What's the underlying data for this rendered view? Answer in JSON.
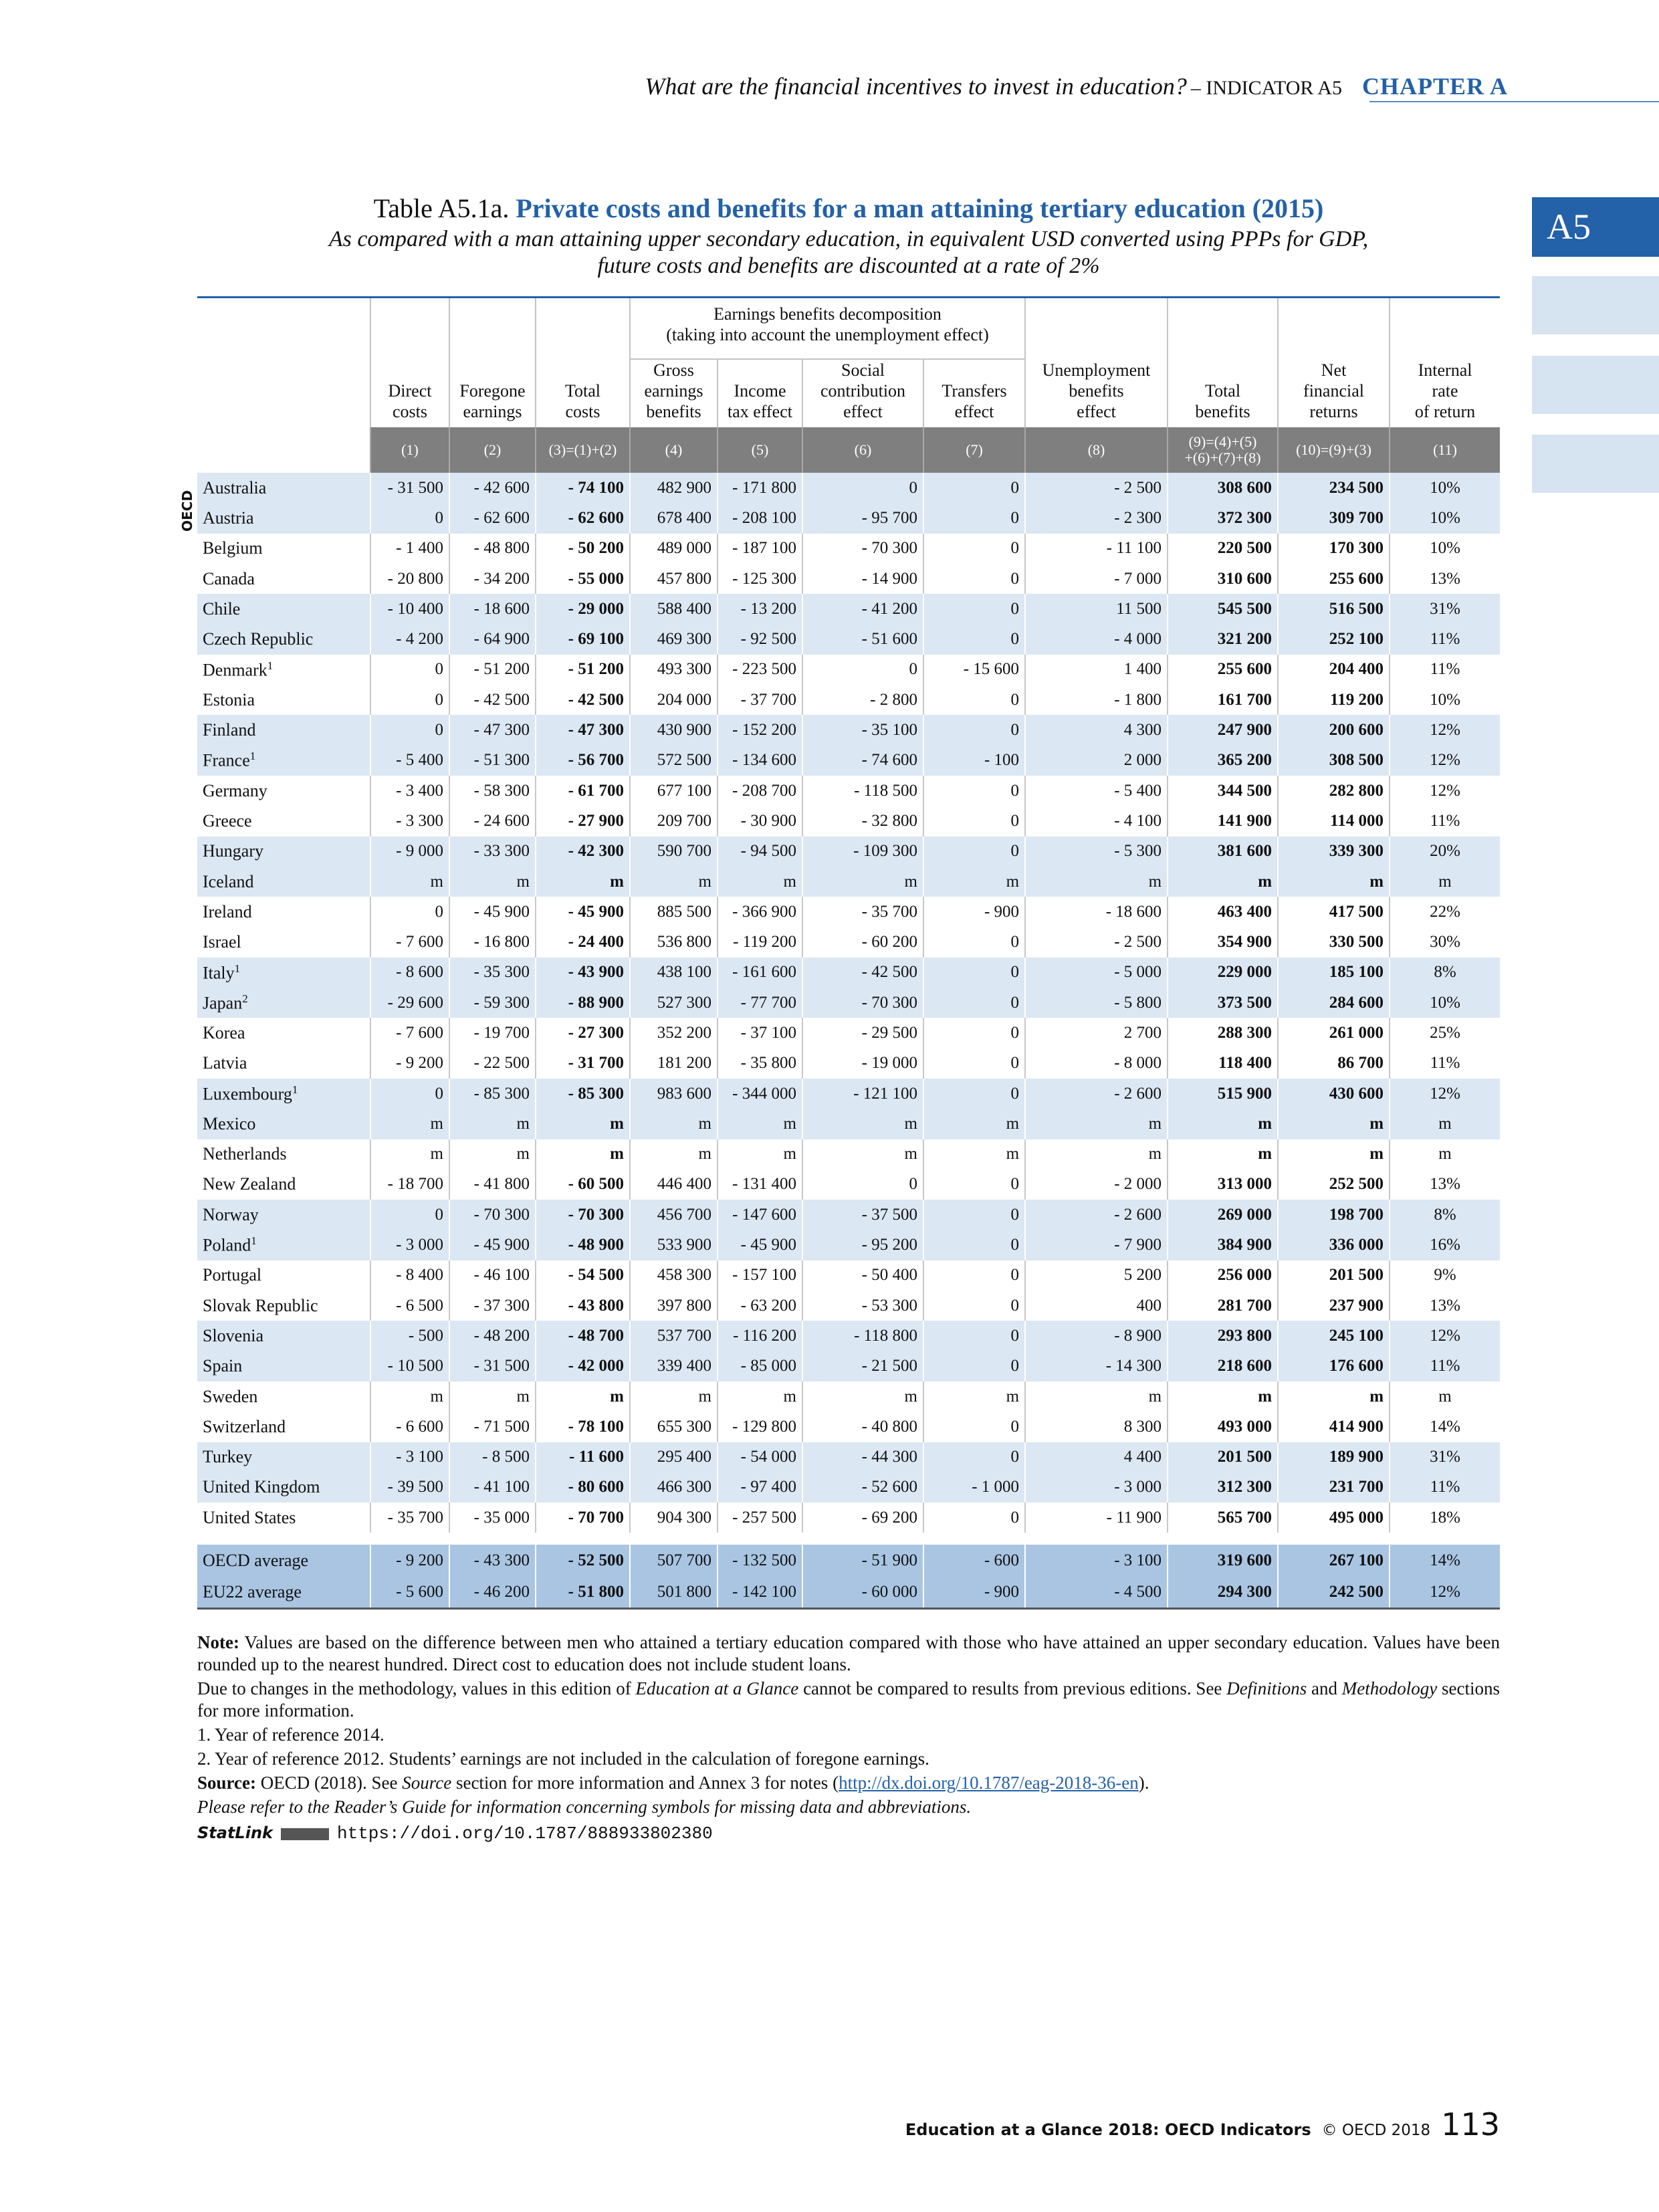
{
  "header": {
    "running_title": "What are the financial incentives to invest in education?",
    "indicator": "– INDICATOR A5",
    "chapter": "CHAPTER A"
  },
  "tab": "A5",
  "table": {
    "label": "Table A5.1a.",
    "title": "Private costs and benefits for a man attaining tertiary education (2015)",
    "subtitle": [
      "As compared with a man attaining upper secondary education, in equivalent USD converted using PPPs for GDP,",
      "future costs and benefits are discounted at a rate of 2%"
    ],
    "group_header": [
      "Earnings benefits decomposition",
      "(taking into account the unemployment effect)"
    ],
    "columns": [
      [
        "Direct",
        "costs"
      ],
      [
        "Foregone",
        "earnings"
      ],
      [
        "Total",
        "costs"
      ],
      [
        "Gross",
        "earnings",
        "benefits"
      ],
      [
        "Income",
        "tax effect"
      ],
      [
        "Social",
        "contribution",
        "effect"
      ],
      [
        "Transfers",
        "effect"
      ],
      [
        "Unemployment",
        "benefits",
        "effect"
      ],
      [
        "Total",
        "benefits"
      ],
      [
        "Net",
        "financial",
        "returns"
      ],
      [
        "Internal",
        "rate",
        "of return"
      ]
    ],
    "column_numbers": [
      [
        "(1)"
      ],
      [
        "(2)"
      ],
      [
        "(3)=(1)+(2)"
      ],
      [
        "(4)"
      ],
      [
        "(5)"
      ],
      [
        "(6)"
      ],
      [
        "(7)"
      ],
      [
        "(8)"
      ],
      [
        "(9)=(4)+(5)",
        "+(6)+(7)+(8)"
      ],
      [
        "(10)=(9)+(3)"
      ],
      [
        "(11)"
      ]
    ],
    "side_label": "OECD",
    "rows": [
      {
        "country": "Australia",
        "values": [
          "- 31 500",
          "- 42 600",
          "- 74 100",
          "482 900",
          "- 171 800",
          "0",
          "0",
          "- 2 500",
          "308 600",
          "234 500",
          "10%"
        ]
      },
      {
        "country": "Austria",
        "values": [
          "0",
          "- 62 600",
          "- 62 600",
          "678 400",
          "- 208 100",
          "- 95 700",
          "0",
          "- 2 300",
          "372 300",
          "309 700",
          "10%"
        ]
      },
      {
        "country": "Belgium",
        "values": [
          "- 1 400",
          "- 48 800",
          "- 50 200",
          "489 000",
          "- 187 100",
          "- 70 300",
          "0",
          "- 11 100",
          "220 500",
          "170 300",
          "10%"
        ]
      },
      {
        "country": "Canada",
        "values": [
          "- 20 800",
          "- 34 200",
          "- 55 000",
          "457 800",
          "- 125 300",
          "- 14 900",
          "0",
          "- 7 000",
          "310 600",
          "255 600",
          "13%"
        ]
      },
      {
        "country": "Chile",
        "values": [
          "- 10 400",
          "- 18 600",
          "- 29 000",
          "588 400",
          "- 13 200",
          "- 41 200",
          "0",
          "11 500",
          "545 500",
          "516 500",
          "31%"
        ]
      },
      {
        "country": "Czech Republic",
        "values": [
          "- 4 200",
          "- 64 900",
          "- 69 100",
          "469 300",
          "- 92 500",
          "- 51 600",
          "0",
          "- 4 000",
          "321 200",
          "252 100",
          "11%"
        ]
      },
      {
        "country": "Denmark",
        "note": "1",
        "values": [
          "0",
          "- 51 200",
          "- 51 200",
          "493 300",
          "- 223 500",
          "0",
          "- 15 600",
          "1 400",
          "255 600",
          "204 400",
          "11%"
        ]
      },
      {
        "country": "Estonia",
        "values": [
          "0",
          "- 42 500",
          "- 42 500",
          "204 000",
          "- 37 700",
          "- 2 800",
          "0",
          "- 1 800",
          "161 700",
          "119 200",
          "10%"
        ]
      },
      {
        "country": "Finland",
        "values": [
          "0",
          "- 47 300",
          "- 47 300",
          "430 900",
          "- 152 200",
          "- 35 100",
          "0",
          "4 300",
          "247 900",
          "200 600",
          "12%"
        ]
      },
      {
        "country": "France",
        "note": "1",
        "values": [
          "- 5 400",
          "- 51 300",
          "- 56 700",
          "572 500",
          "- 134 600",
          "- 74 600",
          "- 100",
          "2 000",
          "365 200",
          "308 500",
          "12%"
        ]
      },
      {
        "country": "Germany",
        "values": [
          "- 3 400",
          "- 58 300",
          "- 61 700",
          "677 100",
          "- 208 700",
          "- 118 500",
          "0",
          "- 5 400",
          "344 500",
          "282 800",
          "12%"
        ]
      },
      {
        "country": "Greece",
        "values": [
          "- 3 300",
          "- 24 600",
          "- 27 900",
          "209 700",
          "- 30 900",
          "- 32 800",
          "0",
          "- 4 100",
          "141 900",
          "114 000",
          "11%"
        ]
      },
      {
        "country": "Hungary",
        "values": [
          "- 9 000",
          "- 33 300",
          "- 42 300",
          "590 700",
          "- 94 500",
          "- 109 300",
          "0",
          "- 5 300",
          "381 600",
          "339 300",
          "20%"
        ]
      },
      {
        "country": "Iceland",
        "values": [
          "m",
          "m",
          "m",
          "m",
          "m",
          "m",
          "m",
          "m",
          "m",
          "m",
          "m"
        ]
      },
      {
        "country": "Ireland",
        "values": [
          "0",
          "- 45 900",
          "- 45 900",
          "885 500",
          "- 366 900",
          "- 35 700",
          "- 900",
          "- 18 600",
          "463 400",
          "417 500",
          "22%"
        ]
      },
      {
        "country": "Israel",
        "values": [
          "- 7 600",
          "- 16 800",
          "- 24 400",
          "536 800",
          "- 119 200",
          "- 60 200",
          "0",
          "- 2 500",
          "354 900",
          "330 500",
          "30%"
        ]
      },
      {
        "country": "Italy",
        "note": "1",
        "values": [
          "- 8 600",
          "- 35 300",
          "- 43 900",
          "438 100",
          "- 161 600",
          "- 42 500",
          "0",
          "- 5 000",
          "229 000",
          "185 100",
          "8%"
        ]
      },
      {
        "country": "Japan",
        "note": "2",
        "values": [
          "- 29 600",
          "- 59 300",
          "- 88 900",
          "527 300",
          "- 77 700",
          "- 70 300",
          "0",
          "- 5 800",
          "373 500",
          "284 600",
          "10%"
        ]
      },
      {
        "country": "Korea",
        "values": [
          "- 7 600",
          "- 19 700",
          "- 27 300",
          "352 200",
          "- 37 100",
          "- 29 500",
          "0",
          "2 700",
          "288 300",
          "261 000",
          "25%"
        ]
      },
      {
        "country": "Latvia",
        "values": [
          "- 9 200",
          "- 22 500",
          "- 31 700",
          "181 200",
          "- 35 800",
          "- 19 000",
          "0",
          "- 8 000",
          "118 400",
          "86 700",
          "11%"
        ]
      },
      {
        "country": "Luxembourg",
        "note": "1",
        "values": [
          "0",
          "- 85 300",
          "- 85 300",
          "983 600",
          "- 344 000",
          "- 121 100",
          "0",
          "- 2 600",
          "515 900",
          "430 600",
          "12%"
        ]
      },
      {
        "country": "Mexico",
        "values": [
          "m",
          "m",
          "m",
          "m",
          "m",
          "m",
          "m",
          "m",
          "m",
          "m",
          "m"
        ]
      },
      {
        "country": "Netherlands",
        "values": [
          "m",
          "m",
          "m",
          "m",
          "m",
          "m",
          "m",
          "m",
          "m",
          "m",
          "m"
        ]
      },
      {
        "country": "New Zealand",
        "values": [
          "- 18 700",
          "- 41 800",
          "- 60 500",
          "446 400",
          "- 131 400",
          "0",
          "0",
          "- 2 000",
          "313 000",
          "252 500",
          "13%"
        ]
      },
      {
        "country": "Norway",
        "values": [
          "0",
          "- 70 300",
          "- 70 300",
          "456 700",
          "- 147 600",
          "- 37 500",
          "0",
          "- 2 600",
          "269 000",
          "198 700",
          "8%"
        ]
      },
      {
        "country": "Poland",
        "note": "1",
        "values": [
          "- 3 000",
          "- 45 900",
          "- 48 900",
          "533 900",
          "- 45 900",
          "- 95 200",
          "0",
          "- 7 900",
          "384 900",
          "336 000",
          "16%"
        ]
      },
      {
        "country": "Portugal",
        "values": [
          "- 8 400",
          "- 46 100",
          "- 54 500",
          "458 300",
          "- 157 100",
          "- 50 400",
          "0",
          "5 200",
          "256 000",
          "201 500",
          "9%"
        ]
      },
      {
        "country": "Slovak Republic",
        "values": [
          "- 6 500",
          "- 37 300",
          "- 43 800",
          "397 800",
          "- 63 200",
          "- 53 300",
          "0",
          "400",
          "281 700",
          "237 900",
          "13%"
        ]
      },
      {
        "country": "Slovenia",
        "values": [
          "- 500",
          "- 48 200",
          "- 48 700",
          "537 700",
          "- 116 200",
          "- 118 800",
          "0",
          "- 8 900",
          "293 800",
          "245 100",
          "12%"
        ]
      },
      {
        "country": "Spain",
        "values": [
          "- 10 500",
          "- 31 500",
          "- 42 000",
          "339 400",
          "- 85 000",
          "- 21 500",
          "0",
          "- 14 300",
          "218 600",
          "176 600",
          "11%"
        ]
      },
      {
        "country": "Sweden",
        "values": [
          "m",
          "m",
          "m",
          "m",
          "m",
          "m",
          "m",
          "m",
          "m",
          "m",
          "m"
        ]
      },
      {
        "country": "Switzerland",
        "values": [
          "- 6 600",
          "- 71 500",
          "- 78 100",
          "655 300",
          "- 129 800",
          "- 40 800",
          "0",
          "8 300",
          "493 000",
          "414 900",
          "14%"
        ]
      },
      {
        "country": "Turkey",
        "values": [
          "- 3 100",
          "- 8 500",
          "- 11 600",
          "295 400",
          "- 54 000",
          "- 44 300",
          "0",
          "4 400",
          "201 500",
          "189 900",
          "31%"
        ]
      },
      {
        "country": "United Kingdom",
        "values": [
          "- 39 500",
          "- 41 100",
          "- 80 600",
          "466 300",
          "- 97 400",
          "- 52 600",
          "- 1 000",
          "- 3 000",
          "312 300",
          "231 700",
          "11%"
        ]
      },
      {
        "country": "United States",
        "values": [
          "- 35 700",
          "- 35 000",
          "- 70 700",
          "904 300",
          "- 257 500",
          "- 69 200",
          "0",
          "- 11 900",
          "565 700",
          "495 000",
          "18%"
        ]
      }
    ],
    "averages": [
      {
        "country": "OECD average",
        "values": [
          "- 9 200",
          "- 43 300",
          "- 52 500",
          "507 700",
          "- 132 500",
          "- 51 900",
          "- 600",
          "- 3 100",
          "319 600",
          "267 100",
          "14%"
        ]
      },
      {
        "country": "EU22 average",
        "values": [
          "- 5 600",
          "- 46 200",
          "- 51 800",
          "501 800",
          "- 142 100",
          "- 60 000",
          "- 900",
          "- 4 500",
          "294 300",
          "242 500",
          "12%"
        ]
      }
    ]
  },
  "notes": {
    "paragraphs": [
      [
        {
          "b": "Note:"
        },
        {
          "t": " Values are based on the difference between men who attained a tertiary education compared with those who have attained an upper secondary education. Values have been rounded up to the nearest hundred. Direct cost to education does not include student loans."
        }
      ],
      [
        {
          "t": "Due to changes in the methodology, values in this edition of "
        },
        {
          "i": "Education at a Glance"
        },
        {
          "t": " cannot be compared to results from previous editions. See "
        },
        {
          "i": "Definitions"
        },
        {
          "t": " and "
        },
        {
          "i": "Methodology"
        },
        {
          "t": " sections for more information."
        }
      ],
      [
        {
          "t": "1. Year of reference 2014."
        }
      ],
      [
        {
          "t": "2. Year of reference 2012. Students’ earnings are not included in the calculation of foregone earnings."
        }
      ],
      [
        {
          "b": "Source:"
        },
        {
          "t": " OECD (2018). See "
        },
        {
          "i": "Source"
        },
        {
          "t": " section for more information and Annex 3 for notes ("
        },
        {
          "a": "http://dx.doi.org/10.1787/eag-2018-36-en"
        },
        {
          "t": ")."
        }
      ],
      [
        {
          "i": "Please refer to the Reader’s Guide for information concerning symbols for missing data and abbreviations."
        }
      ]
    ],
    "statlink": {
      "label": "StatLink",
      "url": "https://doi.org/10.1787/888933802380"
    }
  },
  "footer": {
    "title": "Education at a Glance 2018: OECD Indicators",
    "copyright": "© OECD 2018",
    "page": "113"
  }
}
